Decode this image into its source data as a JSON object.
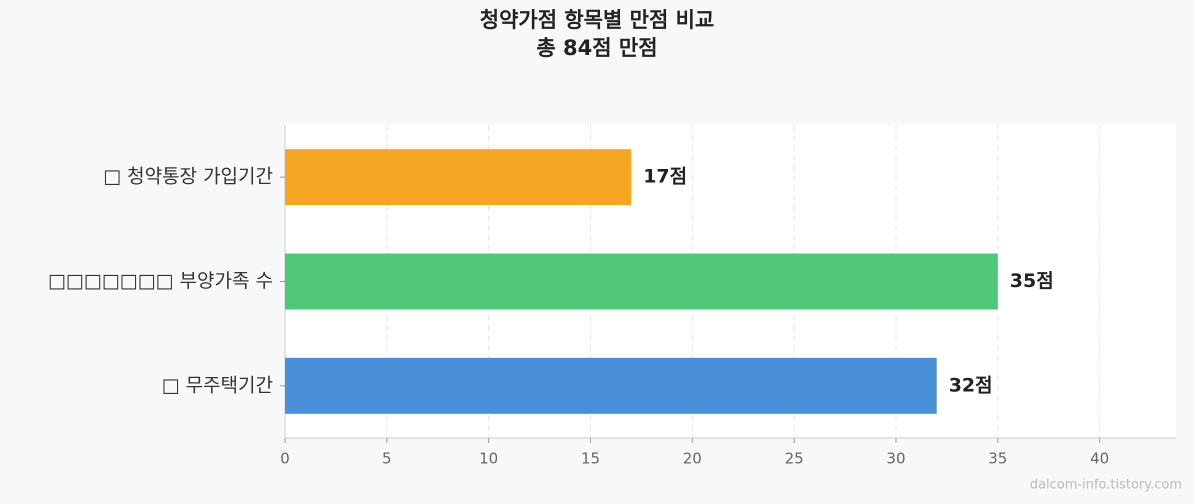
{
  "chart_data": {
    "type": "barh",
    "title": "청약가점 항목별 만점 비교",
    "subtitle": "총 84점 만점",
    "categories": [
      "□ 청약통장 가입기간",
      "□□□□□□□ 부양가족 수",
      "□ 무주택기간"
    ],
    "values": [
      17,
      35,
      32
    ],
    "value_labels": [
      "17점",
      "35점",
      "32점"
    ],
    "colors": [
      "#f5a623",
      "#50c878",
      "#4a90d9"
    ],
    "xlim": [
      0,
      43.75
    ],
    "xticks": [
      0,
      5,
      10,
      15,
      20,
      25,
      30,
      35,
      40
    ],
    "grid": true,
    "watermark": "dalcom-info.tistory.com"
  }
}
